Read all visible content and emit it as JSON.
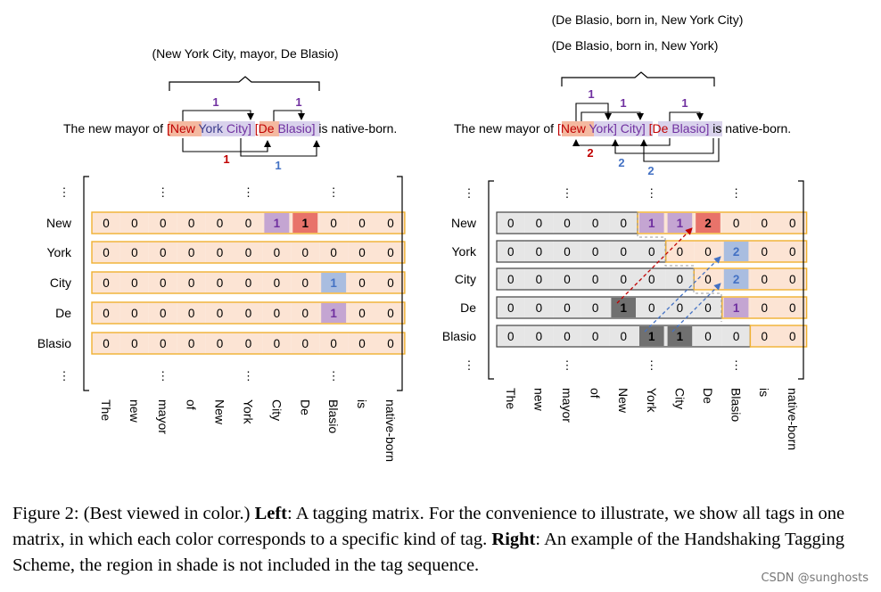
{
  "sentence": {
    "prefix": "The new mayor of",
    "suffix": "is native-born.",
    "entity1_tokens": [
      "New",
      "York",
      "City"
    ],
    "entity2_tokens": [
      "De",
      "Blasio"
    ]
  },
  "tokens": [
    "The",
    "new",
    "mayor",
    "of",
    "New",
    "York",
    "City",
    "De",
    "Blasio",
    "is",
    "native-born"
  ],
  "rows": [
    "New",
    "York",
    "City",
    "De",
    "Blasio"
  ],
  "ellipsis": "⋮",
  "left_panel": {
    "triple": "(New York City, mayor, De Blasio)",
    "arc_labels": [
      "1",
      "1",
      "1",
      "1"
    ],
    "matrix": [
      [
        "0",
        "0",
        "0",
        "0",
        "0",
        "0",
        "1",
        "1",
        "0",
        "0",
        "0"
      ],
      [
        "0",
        "0",
        "0",
        "0",
        "0",
        "0",
        "0",
        "0",
        "0",
        "0",
        "0"
      ],
      [
        "0",
        "0",
        "0",
        "0",
        "0",
        "0",
        "0",
        "0",
        "1",
        "0",
        "0"
      ],
      [
        "0",
        "0",
        "0",
        "0",
        "0",
        "0",
        "0",
        "0",
        "1",
        "0",
        "0"
      ],
      [
        "0",
        "0",
        "0",
        "0",
        "0",
        "0",
        "0",
        "0",
        "0",
        "0",
        "0"
      ]
    ]
  },
  "right_panel": {
    "triples": [
      "(De Blasio, born in, New York City)",
      "(De Blasio, born in, New York)"
    ],
    "arc_labels": [
      "1",
      "1",
      "1",
      "2",
      "2",
      "2"
    ],
    "matrix": [
      [
        "0",
        "0",
        "0",
        "0",
        "0",
        "1",
        "1",
        "2",
        "0",
        "0",
        "0"
      ],
      [
        "0",
        "0",
        "0",
        "0",
        "0",
        "0",
        "0",
        "0",
        "2",
        "0",
        "0"
      ],
      [
        "0",
        "0",
        "0",
        "0",
        "0",
        "0",
        "0",
        "0",
        "2",
        "0",
        "0"
      ],
      [
        "0",
        "0",
        "0",
        "0",
        "1",
        "0",
        "0",
        "0",
        "1",
        "0",
        "0"
      ],
      [
        "0",
        "0",
        "0",
        "0",
        "0",
        "1",
        "1",
        "0",
        "0",
        "0",
        "0"
      ]
    ]
  },
  "colors": {
    "cell_fill": "#fce4d4",
    "cell_border": "#f0b030",
    "shade_fill": "#e6e6e6",
    "shade_border": "#444444",
    "entity_purple": "#c4a5d2",
    "relation_red": "#e8736a",
    "tail_blue": "#a9bde0",
    "dark_cell": "#707070",
    "label_purple": "#7030a0",
    "label_red": "#c00000",
    "label_blue": "#4472c4"
  },
  "caption": {
    "figure": "Figure 2: (Best viewed in color.)",
    "left_label": "Left",
    "left_text": ": A tagging matrix. For the convenience to illustrate, we show all tags in one matrix, in which each color corresponds to a specific kind of tag.",
    "right_label": "Right",
    "right_text": ": An example of the Handshaking Tagging Scheme, the region in shade is not included in the tag sequence."
  },
  "watermark": "CSDN @sunghosts"
}
